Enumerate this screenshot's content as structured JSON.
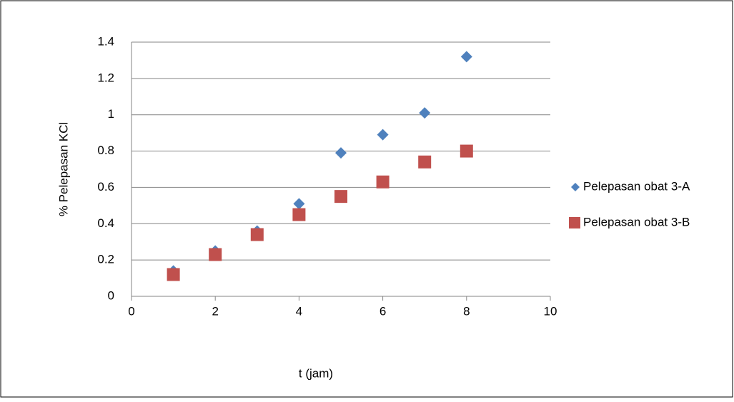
{
  "chart_data": {
    "type": "scatter",
    "x_label": "t (jam)",
    "y_label": "% Pelepasan KCl",
    "xlim": [
      0,
      10
    ],
    "xticks": [
      0,
      2,
      4,
      6,
      8,
      10
    ],
    "ylim": [
      0,
      1.4
    ],
    "yticks": [
      0,
      0.2,
      0.4,
      0.6,
      0.8,
      1,
      1.2,
      1.4
    ],
    "grid": true,
    "legend": "right",
    "series": [
      {
        "name": "Pelepasan obat 3-A",
        "color": "#4f81bd",
        "marker": "diamond",
        "x": [
          1,
          2,
          3,
          4,
          5,
          6,
          7,
          8
        ],
        "values": [
          0.14,
          0.25,
          0.36,
          0.51,
          0.79,
          0.89,
          1.01,
          1.32
        ]
      },
      {
        "name": "Pelepasan obat 3-B",
        "color": "#c0504d",
        "marker": "square",
        "x": [
          1,
          2,
          3,
          4,
          5,
          6,
          7,
          8
        ],
        "values": [
          0.12,
          0.23,
          0.34,
          0.45,
          0.55,
          0.63,
          0.74,
          0.8
        ]
      }
    ]
  }
}
